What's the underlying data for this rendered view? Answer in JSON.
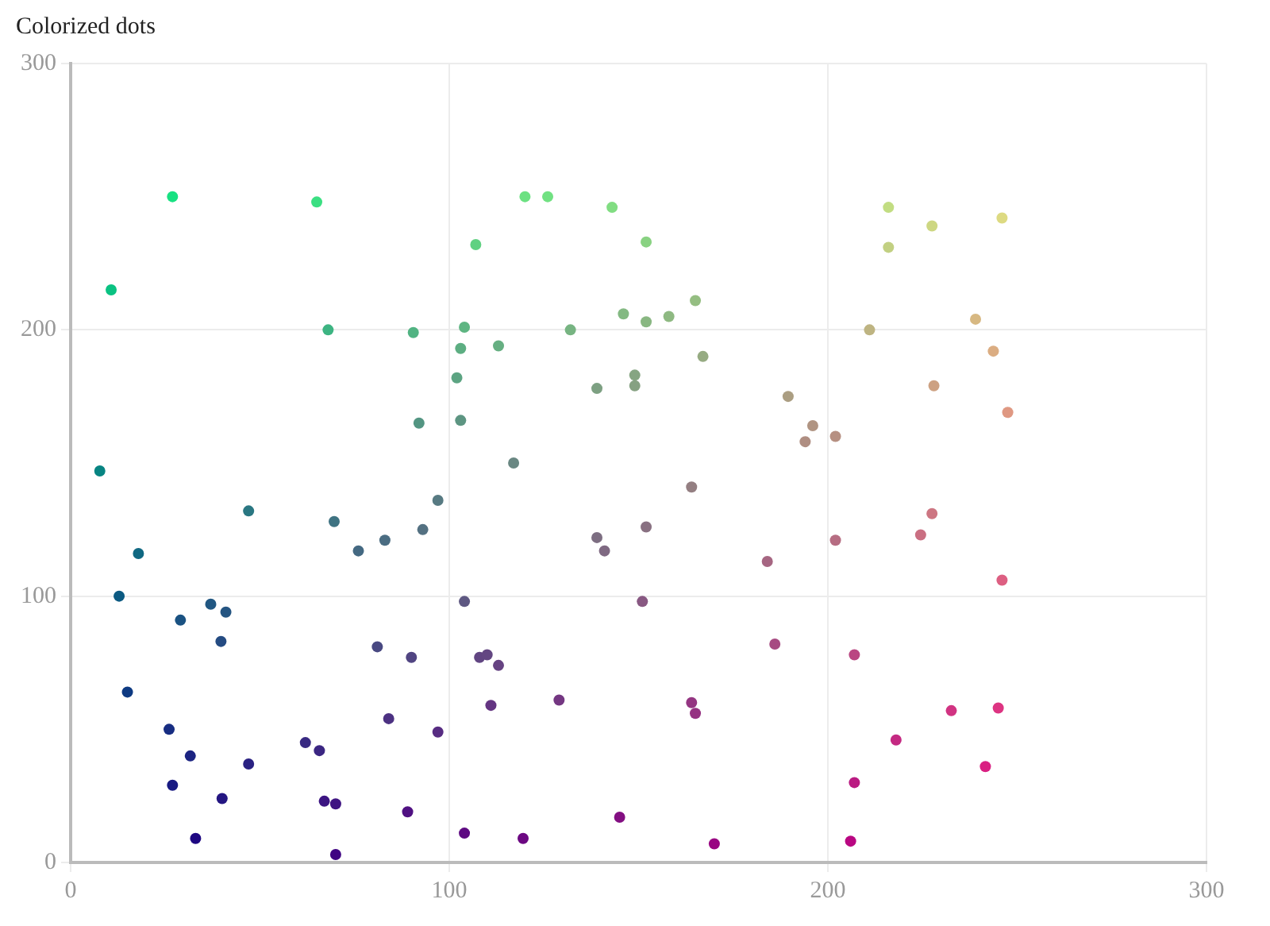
{
  "chart_data": {
    "type": "scatter",
    "title": "Colorized dots",
    "x": [
      7.7,
      10.7,
      12.8,
      15,
      17.9,
      26.9,
      26,
      26.9,
      29,
      31.6,
      33,
      37,
      39.7,
      41,
      40,
      47,
      47,
      62,
      65,
      65.7,
      67,
      68,
      69.6,
      70,
      70,
      76,
      81,
      83,
      84,
      89,
      90,
      90.5,
      92,
      93,
      97,
      97,
      102,
      103,
      103,
      104,
      104,
      104,
      107,
      108,
      110,
      111,
      113,
      113,
      117,
      119.5,
      120,
      126,
      129,
      132,
      139,
      139,
      141,
      143,
      145,
      146,
      149,
      149,
      151,
      152,
      152,
      152,
      158,
      164,
      164,
      165,
      165,
      167,
      170,
      184,
      186,
      189.5,
      194,
      196,
      202,
      202,
      207,
      206,
      207,
      211,
      216,
      216,
      218,
      224.5,
      227.5,
      227.5,
      228,
      232.6,
      239,
      241.6,
      243.7,
      245,
      246,
      246,
      247.5
    ],
    "values": [
      147,
      215,
      100,
      64,
      116,
      250,
      50,
      29,
      91,
      40,
      9,
      97,
      83,
      94,
      24,
      132,
      37,
      45,
      248,
      42,
      23,
      200,
      128,
      22,
      3,
      117,
      81,
      121,
      54,
      19,
      77,
      199,
      165,
      125,
      49,
      136,
      182,
      193,
      166,
      201,
      98,
      11,
      232,
      77,
      78,
      59,
      194,
      74,
      150,
      9,
      250,
      250,
      61,
      200,
      178,
      122,
      117,
      246,
      17,
      206,
      183,
      179,
      98,
      233,
      203,
      126,
      205,
      141,
      60,
      56,
      211,
      190,
      7,
      113,
      82,
      175,
      158,
      164,
      160,
      121,
      78,
      8,
      30,
      200,
      246,
      231,
      46,
      123,
      239,
      131,
      179,
      57,
      204,
      36,
      192,
      58,
      242,
      106,
      169
    ],
    "colors": [
      "#078482",
      "#0ac282",
      "#0c5a82",
      "#0e3a82",
      "#106882",
      "#18e182",
      "#172d82",
      "#181a82",
      "#1a5282",
      "#1c2482",
      "#1e0882",
      "#215782",
      "#244b82",
      "#255582",
      "#241682",
      "#2a7782",
      "#2a2182",
      "#382982",
      "#3bdf82",
      "#3b2682",
      "#3c1582",
      "#3db482",
      "#3f7382",
      "#3f1482",
      "#3f0382",
      "#446982",
      "#494982",
      "#4b6d82",
      "#4c3182",
      "#501182",
      "#514582",
      "#51b382",
      "#539582",
      "#547182",
      "#572c82",
      "#577a82",
      "#5ca482",
      "#5dae82",
      "#5d9582",
      "#5eb582",
      "#5e5882",
      "#5e0a82",
      "#60d182",
      "#614582",
      "#634682",
      "#643582",
      "#66af82",
      "#664382",
      "#698782",
      "#6c0882",
      "#6ce182",
      "#71e182",
      "#743782",
      "#77b482",
      "#7da082",
      "#7d6e82",
      "#7f6982",
      "#81dd82",
      "#830f82",
      "#83b982",
      "#86a582",
      "#86a182",
      "#885882",
      "#89d282",
      "#89b782",
      "#897182",
      "#8eb982",
      "#947f82",
      "#943682",
      "#953282",
      "#95be82",
      "#96ab82",
      "#990682",
      "#a66682",
      "#a74a82",
      "#ab9e82",
      "#af8e82",
      "#b09482",
      "#b69082",
      "#b66d82",
      "#ba4682",
      "#b90782",
      "#ba1b82",
      "#beb482",
      "#c2dd82",
      "#c2d082",
      "#c42982",
      "#ca6f82",
      "#cdd782",
      "#cd7682",
      "#cda182",
      "#d13382",
      "#d7b882",
      "#d92082",
      "#dbad82",
      "#dd3482",
      "#ddda82",
      "#dd5f82",
      "#df9882"
    ],
    "xlim": [
      0,
      300
    ],
    "xticks": [
      0,
      100,
      200,
      300
    ],
    "ylim": [
      0,
      300
    ],
    "yticks": [
      0,
      100,
      200,
      300
    ],
    "grid": true,
    "legend": false,
    "marker": "circle"
  }
}
